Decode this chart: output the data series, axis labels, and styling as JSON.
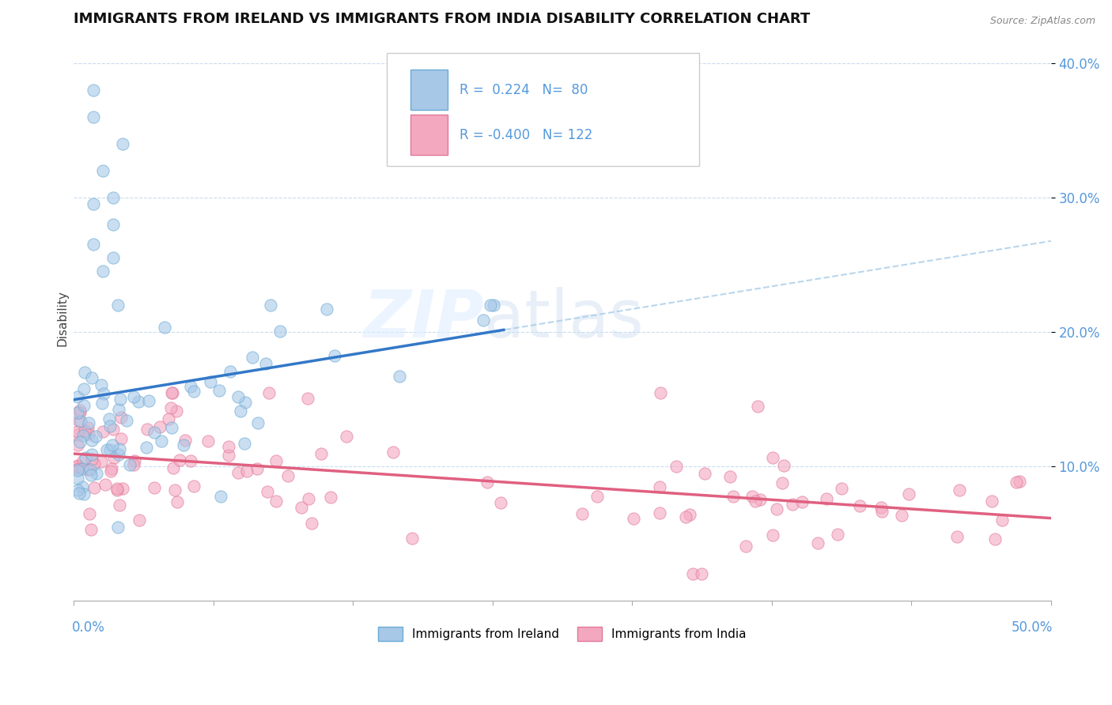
{
  "title": "IMMIGRANTS FROM IRELAND VS IMMIGRANTS FROM INDIA DISABILITY CORRELATION CHART",
  "source": "Source: ZipAtlas.com",
  "ylabel": "Disability",
  "xlim": [
    0.0,
    0.5
  ],
  "ylim": [
    0.0,
    0.42
  ],
  "ireland_R": 0.224,
  "ireland_N": 80,
  "india_R": -0.4,
  "india_N": 122,
  "ireland_dot_color": "#a8c8e8",
  "ireland_dot_edge": "#6aaad4",
  "india_dot_color": "#f4a8c0",
  "india_dot_edge": "#e07898",
  "ireland_line_color": "#3378c8",
  "india_line_color": "#e06080",
  "dashed_line_color": "#a8cce8",
  "background_color": "#ffffff",
  "grid_color": "#c8ddf0",
  "ytick_color": "#5599dd",
  "legend_ireland": "Immigrants from Ireland",
  "legend_india": "Immigrants from India",
  "ireland_seed": 42,
  "india_seed": 99
}
